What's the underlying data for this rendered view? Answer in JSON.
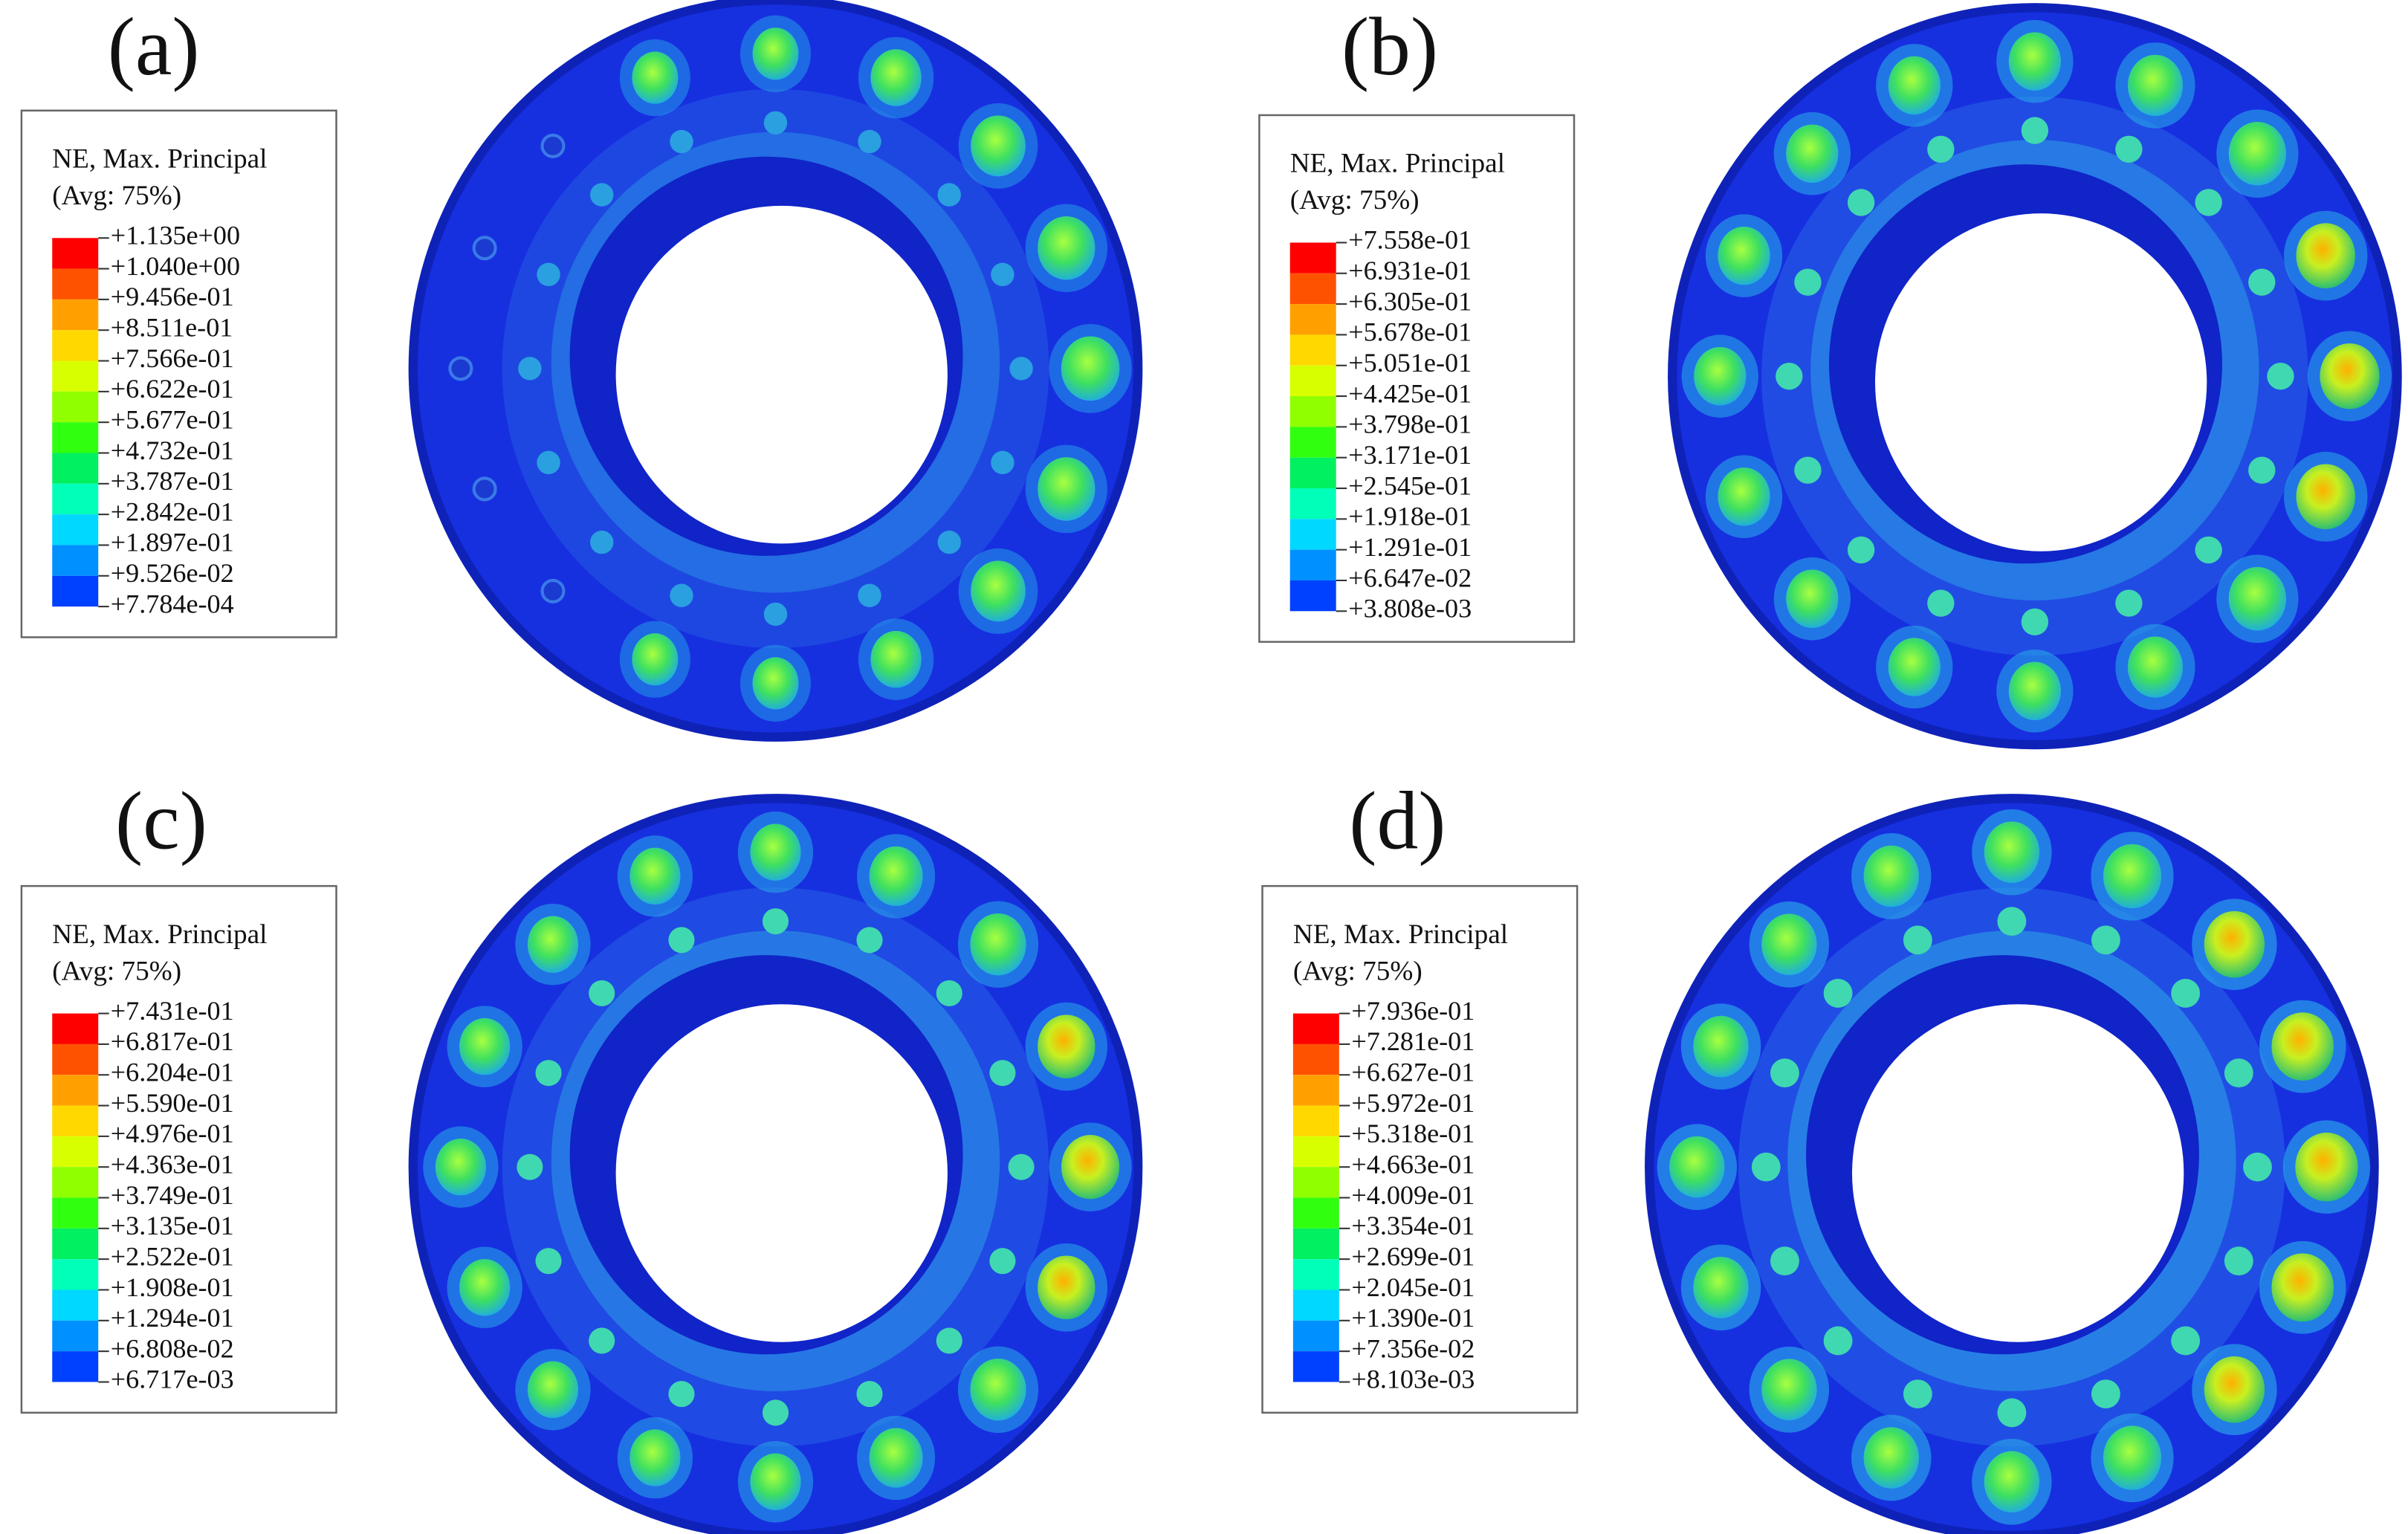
{
  "panels": [
    {
      "label": "(a)",
      "legend": {
        "title": "NE, Max. Principal",
        "subtitle": "(Avg: 75%)",
        "values": [
          "+1.135e+00",
          "+1.040e+00",
          "+9.456e-01",
          "+8.511e-01",
          "+7.566e-01",
          "+6.622e-01",
          "+5.677e-01",
          "+4.732e-01",
          "+3.787e-01",
          "+2.842e-01",
          "+1.897e-01",
          "+9.526e-02",
          "+7.784e-04"
        ]
      }
    },
    {
      "label": "(b)",
      "legend": {
        "title": "NE, Max. Principal",
        "subtitle": "(Avg: 75%)",
        "values": [
          "+7.558e-01",
          "+6.931e-01",
          "+6.305e-01",
          "+5.678e-01",
          "+5.051e-01",
          "+4.425e-01",
          "+3.798e-01",
          "+3.171e-01",
          "+2.545e-01",
          "+1.918e-01",
          "+1.291e-01",
          "+6.647e-02",
          "+3.808e-03"
        ]
      }
    },
    {
      "label": "(c)",
      "legend": {
        "title": "NE, Max. Principal",
        "subtitle": "(Avg: 75%)",
        "values": [
          "+7.431e-01",
          "+6.817e-01",
          "+6.204e-01",
          "+5.590e-01",
          "+4.976e-01",
          "+4.363e-01",
          "+3.749e-01",
          "+3.135e-01",
          "+2.522e-01",
          "+1.908e-01",
          "+1.294e-01",
          "+6.808e-02",
          "+6.717e-03"
        ]
      }
    },
    {
      "label": "(d)",
      "legend": {
        "title": "NE, Max. Principal",
        "subtitle": "(Avg: 75%)",
        "values": [
          "+7.936e-01",
          "+7.281e-01",
          "+6.627e-01",
          "+5.972e-01",
          "+5.318e-01",
          "+4.663e-01",
          "+4.009e-01",
          "+3.354e-01",
          "+2.699e-01",
          "+2.045e-01",
          "+1.390e-01",
          "+7.356e-02",
          "+8.103e-03"
        ]
      }
    }
  ]
}
